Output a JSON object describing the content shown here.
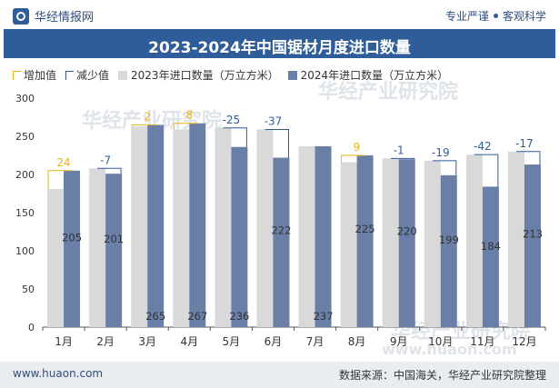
{
  "header": {
    "brand": "华经情报网",
    "tagline_left": "专业严谨",
    "tagline_right": "客观科学"
  },
  "colors": {
    "series_2023": "#d9d9d9",
    "series_2024": "#6a7fa8",
    "increase": "#e7b417",
    "decrease": "#2f5d9a",
    "title_bar": "#2f5d9a"
  },
  "chart_data": {
    "type": "bar",
    "title": "2023-2024年中国锯材月度进口数量",
    "legend": [
      "增加值",
      "减少值",
      "2023年进口数量（万立方米）",
      "2024年进口数量（万立方米）"
    ],
    "legend_placement": "top-left",
    "categories": [
      "1月",
      "2月",
      "3月",
      "4月",
      "5月",
      "6月",
      "7月",
      "8月",
      "9月",
      "10月",
      "11月",
      "12月"
    ],
    "series": [
      {
        "name": "2023年进口数量（万立方米）",
        "values": [
          181,
          208,
          263,
          259,
          261,
          259,
          237,
          216,
          221,
          218,
          226,
          230
        ]
      },
      {
        "name": "2024年进口数量（万立方米）",
        "values": [
          205,
          201,
          265,
          267,
          236,
          222,
          237,
          225,
          220,
          199,
          184,
          213
        ]
      }
    ],
    "change_labels": [
      "24",
      "-7",
      "2",
      "8",
      "-25",
      "-37",
      "",
      "9",
      "-1",
      "-19",
      "-42",
      "-17"
    ],
    "value_labels": [
      "205",
      "201",
      "265",
      "267",
      "236",
      "222",
      "237",
      "225",
      "220",
      "199",
      "184",
      "213"
    ],
    "yticks": [
      "0",
      "50",
      "100",
      "150",
      "200",
      "250",
      "300"
    ],
    "ylim": [
      0,
      300
    ],
    "grid": false
  },
  "watermarks": [
    "华经产业研究院",
    "www.huaon.com"
  ],
  "footer": {
    "website": "www.huaon.com",
    "source": "数据来源：中国海关，华经产业研究院整理"
  }
}
